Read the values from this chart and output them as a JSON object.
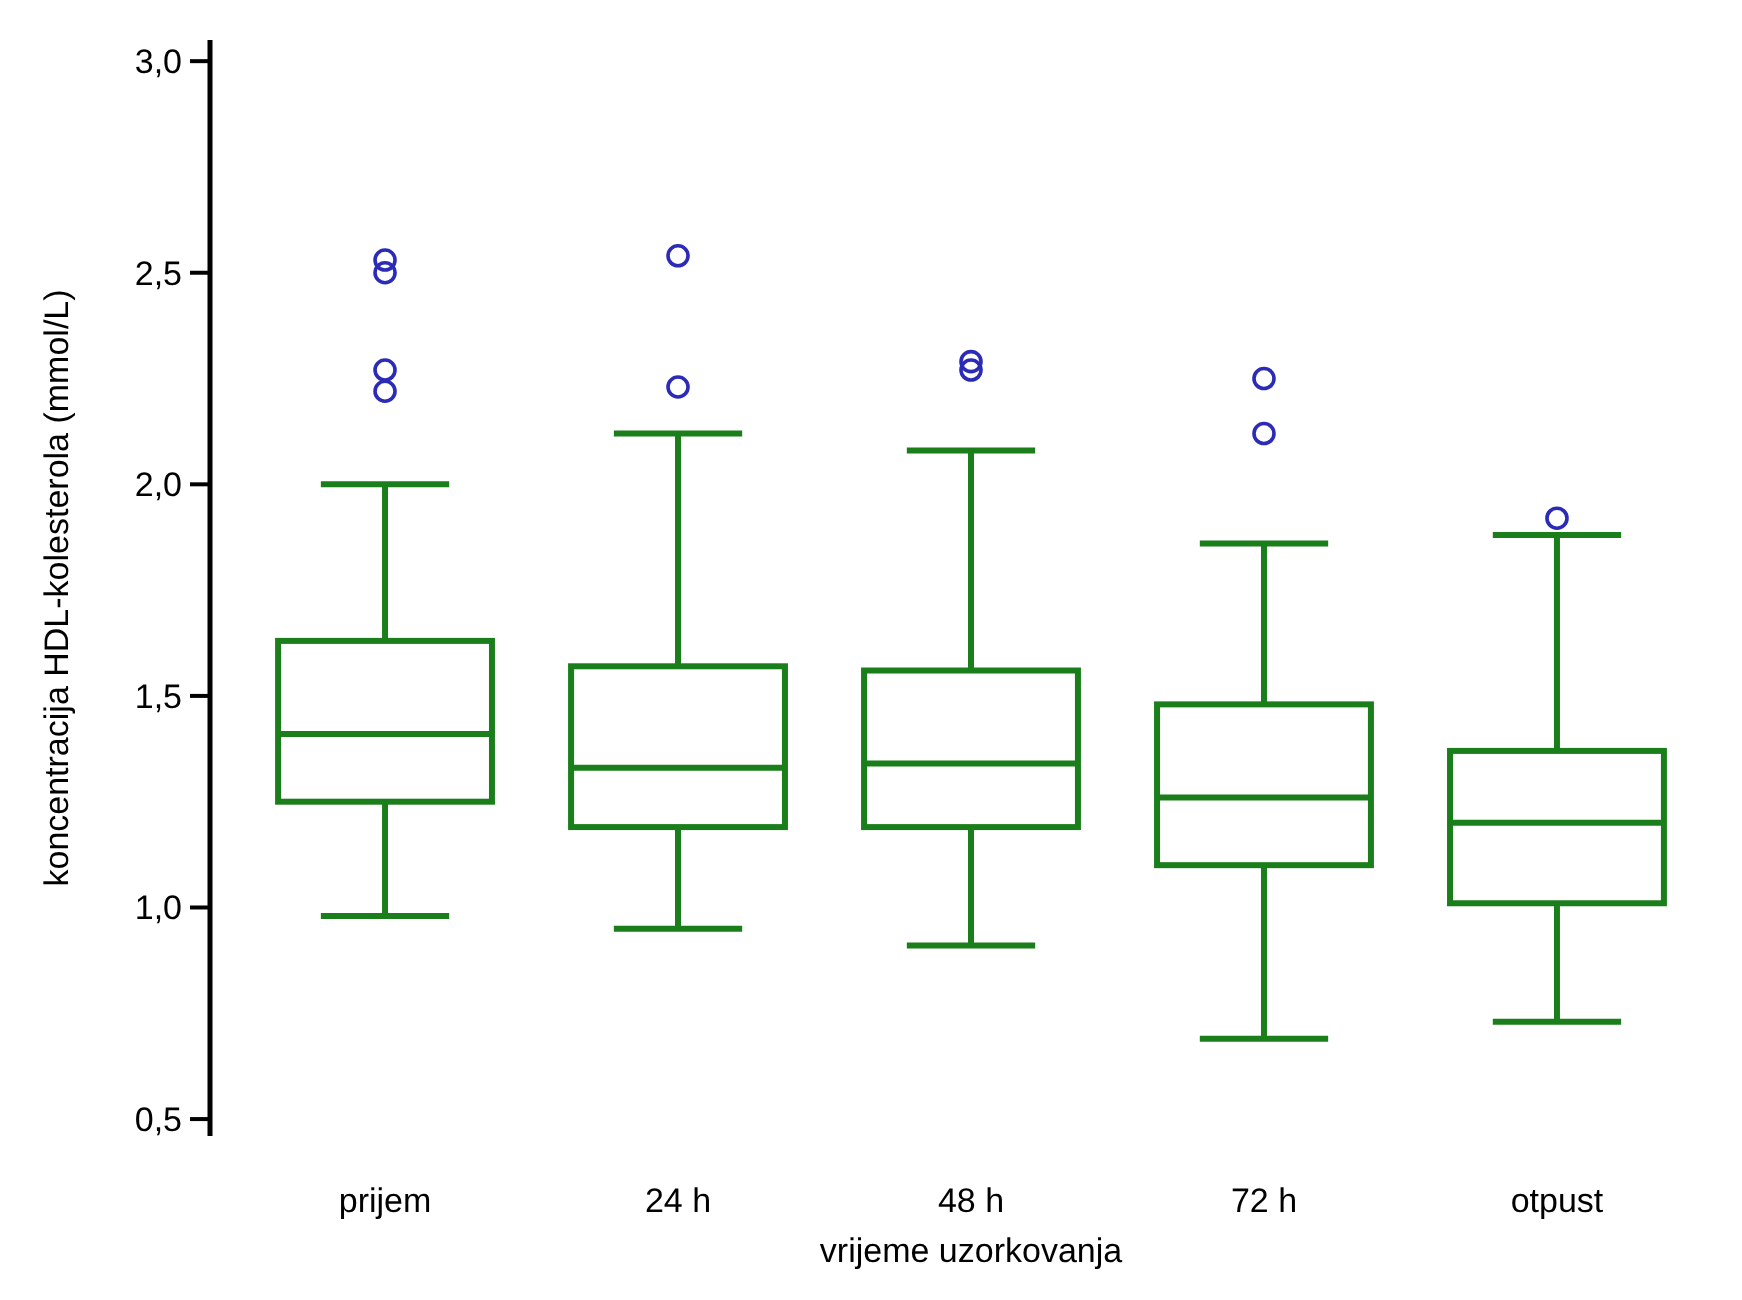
{
  "chart_data": {
    "type": "box",
    "xlabel": "vrijeme uzorkovanja",
    "ylabel": "koncentracija HDL-kolesterola (mmol/L)",
    "categories": [
      "prijem",
      "24 h",
      "48 h",
      "72 h",
      "otpust"
    ],
    "color": "#1a7f1a",
    "boxes": [
      {
        "low": 0.98,
        "q1": 1.25,
        "median": 1.41,
        "q3": 1.63,
        "high": 2.0,
        "outliers": [
          2.53,
          2.5,
          2.27,
          2.22
        ]
      },
      {
        "low": 0.95,
        "q1": 1.19,
        "median": 1.33,
        "q3": 1.57,
        "high": 2.12,
        "outliers": [
          2.54,
          2.23
        ]
      },
      {
        "low": 0.91,
        "q1": 1.19,
        "median": 1.34,
        "q3": 1.56,
        "high": 2.08,
        "outliers": [
          2.27,
          2.29
        ]
      },
      {
        "low": 0.69,
        "q1": 1.1,
        "median": 1.26,
        "q3": 1.48,
        "high": 1.86,
        "outliers": [
          2.25,
          2.12
        ]
      },
      {
        "low": 0.73,
        "q1": 1.01,
        "median": 1.2,
        "q3": 1.37,
        "high": 1.88,
        "outliers": [
          1.92
        ]
      }
    ],
    "ylim": [
      0.46,
      3.05
    ],
    "yticks": [
      {
        "value": 0.5,
        "label": "0,5"
      },
      {
        "value": 1,
        "label": "1,0"
      },
      {
        "value": 1.5,
        "label": "1,5"
      },
      {
        "value": 2,
        "label": "2,0"
      },
      {
        "value": 2.5,
        "label": "2,5"
      },
      {
        "value": 3,
        "label": "3,0"
      }
    ],
    "grid": false
  }
}
